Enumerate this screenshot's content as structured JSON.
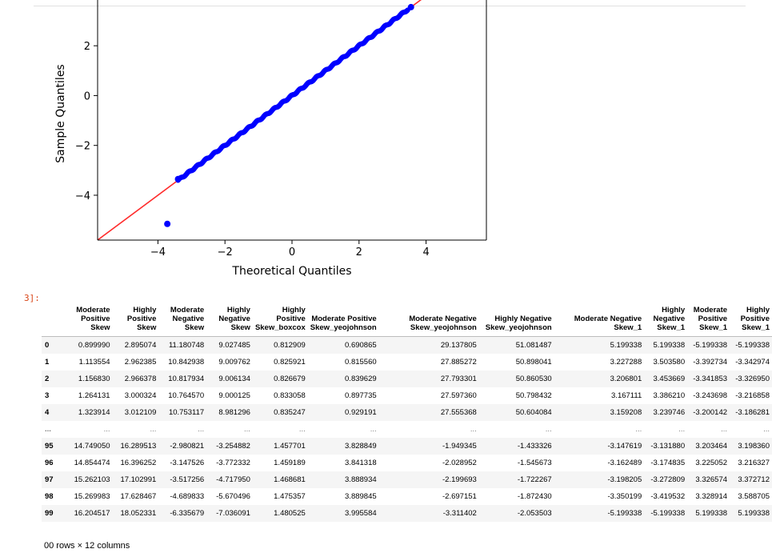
{
  "chart_data": {
    "type": "scatter",
    "xlabel": "Theoretical Quantiles",
    "ylabel": "Sample Quantiles",
    "xlim": [
      -5.8,
      5.8
    ],
    "ylim": [
      -5.8,
      4.8
    ],
    "xticks": [
      -4,
      -2,
      0,
      2,
      4
    ],
    "yticks": [
      -4,
      -2,
      0,
      2,
      4
    ],
    "xtick_labels": [
      "−4",
      "−2",
      "0",
      "2",
      "4"
    ],
    "ytick_labels": [
      "−4",
      "−2",
      "0",
      "2",
      "4"
    ],
    "grid": false,
    "reference_line": {
      "slope": 1,
      "intercept": 0,
      "color": "#ff2b2b"
    },
    "point_color": "#0000ff",
    "points_summary": "dense points along y=x from x≈-3.4 to x≈3.5",
    "outliers": [
      {
        "x": -3.72,
        "y": -5.15
      },
      {
        "x": 3.55,
        "y": 3.55
      },
      {
        "x": -3.4,
        "y": -3.35
      }
    ]
  },
  "cell": {
    "prompt": "3]:"
  },
  "table": {
    "columns": [
      "Moderate Positive Skew",
      "Highly Positive Skew",
      "Moderate Negative Skew",
      "Highly Negative Skew",
      "Highly Positive Skew_boxcox",
      "Moderate Positive Skew_yeojohnson",
      "Moderate Negative Skew_yeojohnson",
      "Highly Negative Skew_yeojohnson",
      "Moderate Negative Skew_1",
      "Highly Negative Skew_1",
      "Moderate Positive Skew_1",
      "Highly Positive Skew_1"
    ],
    "rows": [
      {
        "index": "0",
        "values": [
          "0.899990",
          "2.895074",
          "11.180748",
          "9.027485",
          "0.812909",
          "0.690865",
          "29.137805",
          "51.081487",
          "5.199338",
          "5.199338",
          "-5.199338",
          "-5.199338"
        ]
      },
      {
        "index": "1",
        "values": [
          "1.113554",
          "2.962385",
          "10.842938",
          "9.009762",
          "0.825921",
          "0.815560",
          "27.885272",
          "50.898041",
          "3.227288",
          "3.503580",
          "-3.392734",
          "-3.342974"
        ]
      },
      {
        "index": "2",
        "values": [
          "1.156830",
          "2.966378",
          "10.817934",
          "9.006134",
          "0.826679",
          "0.839629",
          "27.793301",
          "50.860530",
          "3.206801",
          "3.453669",
          "-3.341853",
          "-3.326950"
        ]
      },
      {
        "index": "3",
        "values": [
          "1.264131",
          "3.000324",
          "10.764570",
          "9.000125",
          "0.833058",
          "0.897735",
          "27.597360",
          "50.798432",
          "3.167111",
          "3.386210",
          "-3.243698",
          "-3.216858"
        ]
      },
      {
        "index": "4",
        "values": [
          "1.323914",
          "3.012109",
          "10.753117",
          "8.981296",
          "0.835247",
          "0.929191",
          "27.555368",
          "50.604084",
          "3.159208",
          "3.239746",
          "-3.200142",
          "-3.186281"
        ]
      },
      {
        "index": "...",
        "values": [
          "...",
          "...",
          "...",
          "...",
          "...",
          "...",
          "...",
          "...",
          "...",
          "...",
          "...",
          "..."
        ]
      },
      {
        "index": "95",
        "values": [
          "14.749050",
          "16.289513",
          "-2.980821",
          "-3.254882",
          "1.457701",
          "3.828849",
          "-1.949345",
          "-1.433326",
          "-3.147619",
          "-3.131880",
          "3.203464",
          "3.198360"
        ]
      },
      {
        "index": "96",
        "values": [
          "14.854474",
          "16.396252",
          "-3.147526",
          "-3.772332",
          "1.459189",
          "3.841318",
          "-2.028952",
          "-1.545673",
          "-3.162489",
          "-3.174835",
          "3.225052",
          "3.216327"
        ]
      },
      {
        "index": "97",
        "values": [
          "15.262103",
          "17.102991",
          "-3.517256",
          "-4.717950",
          "1.468681",
          "3.888934",
          "-2.199693",
          "-1.722267",
          "-3.198205",
          "-3.272809",
          "3.326574",
          "3.372712"
        ]
      },
      {
        "index": "98",
        "values": [
          "15.269983",
          "17.628467",
          "-4.689833",
          "-5.670496",
          "1.475357",
          "3.889845",
          "-2.697151",
          "-1.872430",
          "-3.350199",
          "-3.419532",
          "3.328914",
          "3.588705"
        ]
      },
      {
        "index": "99",
        "values": [
          "16.204517",
          "18.052331",
          "-6.335679",
          "-7.036091",
          "1.480525",
          "3.995584",
          "-3.311402",
          "-2.053503",
          "-5.199338",
          "-5.199338",
          "5.199338",
          "5.199338"
        ]
      }
    ]
  },
  "shape_info": "00 rows × 12 columns"
}
